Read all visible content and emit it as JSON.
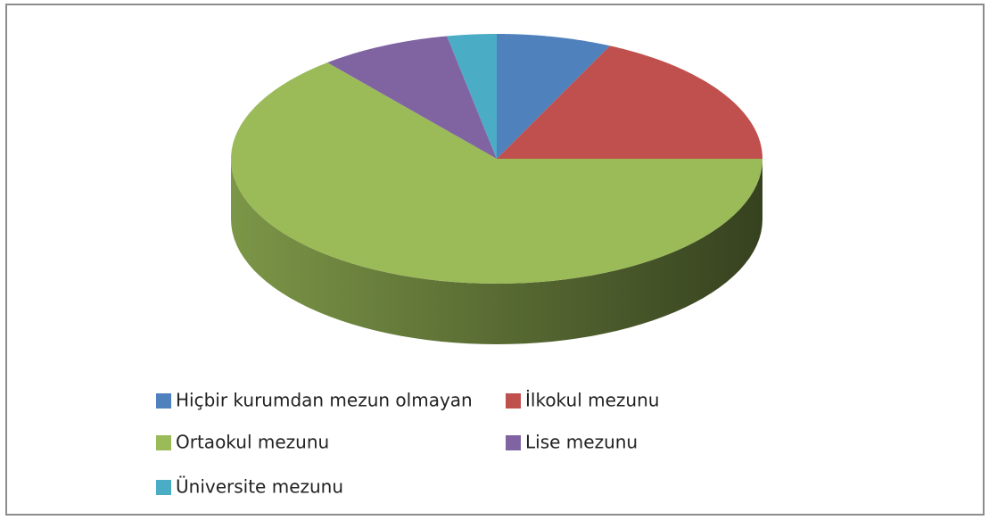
{
  "chart_data": {
    "type": "pie",
    "categories": [
      "Hiçbir kurumdan mezun olmayan",
      "İlkokul mezunu",
      "Ortaokul mezunu",
      "Lise mezunu",
      "Üniversite mezunu"
    ],
    "values": [
      7,
      18,
      64,
      8,
      3
    ],
    "colors": [
      "#4f81bd",
      "#c0504d",
      "#9bbb59",
      "#8064a2",
      "#4bacc6"
    ]
  }
}
